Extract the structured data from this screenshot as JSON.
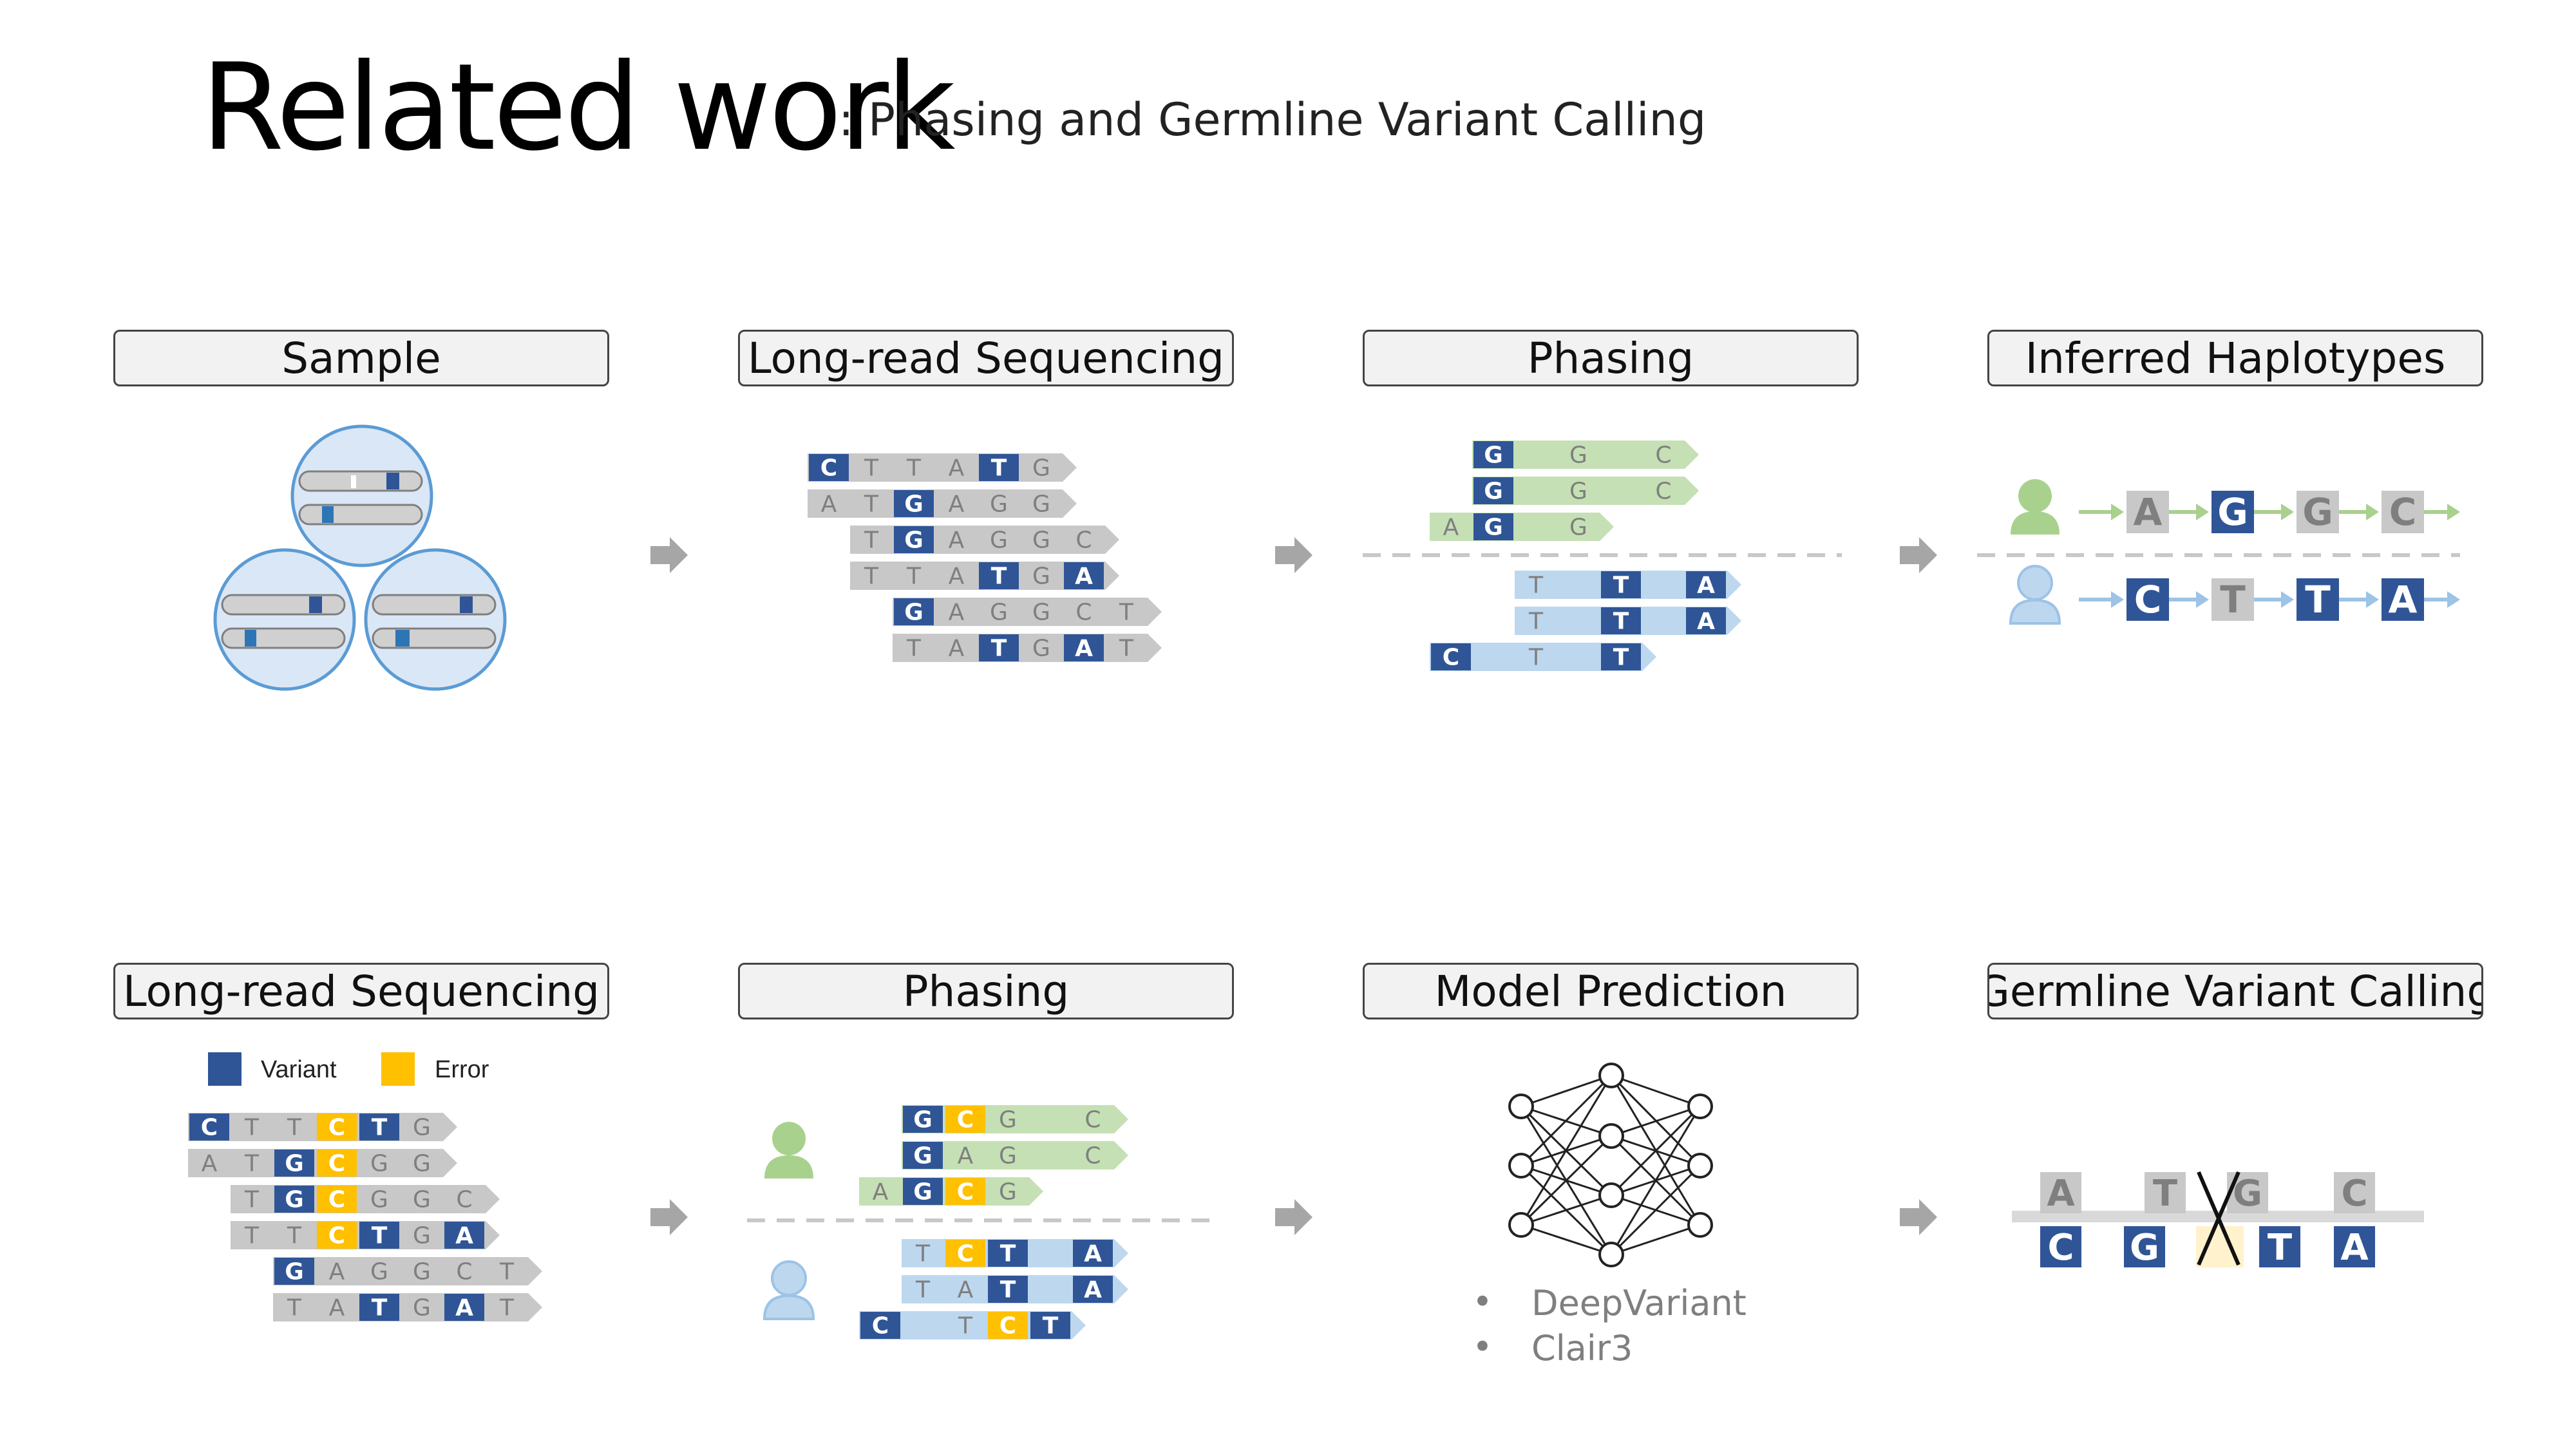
{
  "slide": {
    "title": "Related work",
    "subtitle": ": Phasing and Germline Variant Calling"
  },
  "stages": {
    "top": [
      "Sample",
      "Long-read Sequencing",
      "Phasing",
      "Inferred Haplotypes"
    ],
    "bottom": [
      "Long-read Sequencing",
      "Phasing",
      "Model Prediction",
      "Germline Variant Calling"
    ]
  },
  "legend": {
    "variant": "Variant",
    "error": "Error"
  },
  "models": [
    "DeepVariant",
    "Clair3"
  ],
  "colors": {
    "variant": "#2f5597",
    "error": "#ffc000",
    "read_gray": "#c8c8c8",
    "read_green": "#c5e0b4",
    "read_blue": "#bdd7ee",
    "text_gray": "#7f7f7f",
    "arrow_gray": "#a6a6a6"
  },
  "sequencing_reads": [
    [
      "C-v",
      "T",
      "T",
      "A",
      "T-v",
      "G"
    ],
    [
      "A",
      "T",
      "G-v",
      "A",
      "G",
      "G"
    ],
    [
      "",
      "T",
      "G-v",
      "A",
      "G",
      "G",
      "C"
    ],
    [
      "",
      "T",
      "T",
      "A",
      "T-v",
      "G",
      "A-v"
    ],
    [
      "",
      "",
      "G-v",
      "A",
      "G",
      "G",
      "C",
      "T"
    ],
    [
      "",
      "",
      "T",
      "A",
      "T-v",
      "G",
      "A-v",
      "T"
    ]
  ],
  "phasing_top": {
    "green_reads": [
      [
        "",
        "G-v",
        "",
        "G",
        "",
        "C"
      ],
      [
        "",
        "G-v",
        "",
        "G",
        "",
        "C"
      ],
      [
        "A",
        "G-v",
        "",
        "G"
      ]
    ],
    "blue_reads": [
      [
        "",
        "",
        "T",
        "",
        "T-v",
        "",
        "A-v"
      ],
      [
        "",
        "",
        "T",
        "",
        "T-v",
        "",
        "A-v"
      ],
      [
        "C-v",
        "",
        "T",
        "",
        "T-v"
      ]
    ]
  },
  "haplotypes": {
    "hap1": [
      "A",
      "G",
      "G",
      "C"
    ],
    "hap1_variant": [
      false,
      true,
      false,
      false
    ],
    "hap2": [
      "C",
      "T",
      "T",
      "A"
    ],
    "hap2_variant": [
      true,
      false,
      true,
      true
    ]
  },
  "error_reads": [
    [
      "C-v",
      "T",
      "T",
      "C-e",
      "T-v",
      "G"
    ],
    [
      "A",
      "T",
      "G-v",
      "C-e",
      "G",
      "G"
    ],
    [
      "",
      "T",
      "G-v",
      "C-e",
      "G",
      "G",
      "C"
    ],
    [
      "",
      "T",
      "T",
      "C-e",
      "T-v",
      "G",
      "A-v"
    ],
    [
      "",
      "",
      "G-v",
      "A",
      "G",
      "G",
      "C",
      "T"
    ],
    [
      "",
      "",
      "T",
      "A",
      "T-v",
      "G",
      "A-v",
      "T"
    ]
  ],
  "phasing_bottom": {
    "green_reads": [
      [
        "",
        "G-v",
        "C-e",
        "G",
        "",
        "C"
      ],
      [
        "",
        "G-v",
        "A",
        "G",
        "",
        "C"
      ],
      [
        "A",
        "G-v",
        "C-e",
        "G"
      ]
    ],
    "blue_reads": [
      [
        "",
        "T",
        "C-e",
        "T-v",
        "",
        "A-v"
      ],
      [
        "",
        "T",
        "A",
        "T-v",
        "",
        "A-v"
      ],
      [
        "C-v",
        "",
        "T",
        "C-e",
        "T-v"
      ]
    ]
  },
  "germline": {
    "ref": [
      "A",
      "T",
      "G",
      "C"
    ],
    "alt": [
      "C",
      "G",
      "T",
      "A"
    ],
    "alt_crossed": [
      false,
      false,
      true,
      false
    ]
  }
}
